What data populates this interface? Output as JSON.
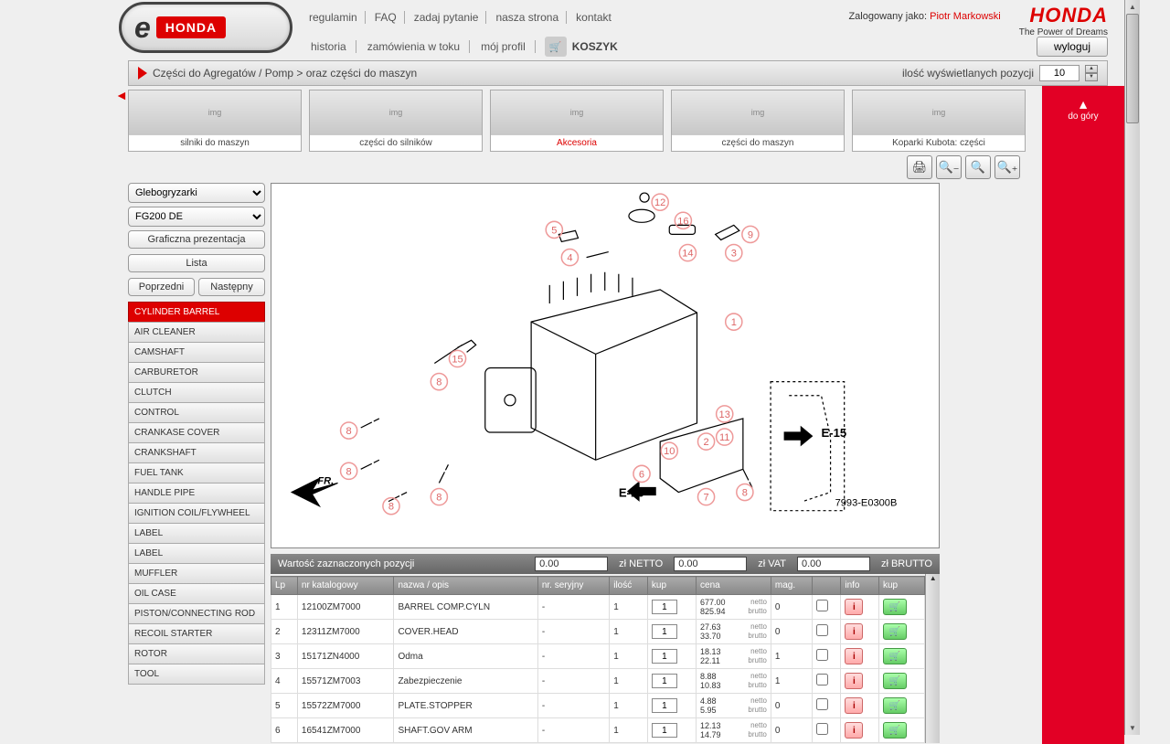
{
  "header": {
    "topLinks": [
      "regulamin",
      "FAQ",
      "zadaj pytanie",
      "nasza strona",
      "kontakt"
    ],
    "loginLabel": "Zalogowany jako:",
    "userName": "Piotr Markowski",
    "hondaTagline": "The Power of Dreams",
    "navLinks": [
      "historia",
      "zamówienia w toku",
      "mój profil"
    ],
    "cartLabel": "KOSZYK",
    "logoutLabel": "wyloguj"
  },
  "breadcrumb": {
    "path": "Części do Agregatów / Pomp >  oraz części do maszyn",
    "countLabel": "ilość wyświetlanych pozycji",
    "countValue": "10"
  },
  "categories": [
    {
      "label": "silniki do maszyn",
      "red": false
    },
    {
      "label": "części do silników",
      "red": false
    },
    {
      "label": "Akcesoria",
      "red": true
    },
    {
      "label": "części do maszyn",
      "red": false
    },
    {
      "label": "Koparki Kubota: części",
      "red": false
    }
  ],
  "sidebar": {
    "select1": "Glebogryzarki",
    "select2": "FG200 DE",
    "btnGraphic": "Graficzna prezentacja",
    "btnList": "Lista",
    "btnPrev": "Poprzedni",
    "btnNext": "Następny",
    "parts": [
      {
        "name": "CYLINDER BARREL",
        "active": true
      },
      {
        "name": "AIR CLEANER",
        "active": false
      },
      {
        "name": "CAMSHAFT",
        "active": false
      },
      {
        "name": "CARBURETOR",
        "active": false
      },
      {
        "name": "CLUTCH",
        "active": false
      },
      {
        "name": "CONTROL",
        "active": false
      },
      {
        "name": "CRANKASE COVER",
        "active": false
      },
      {
        "name": "CRANKSHAFT",
        "active": false
      },
      {
        "name": "FUEL TANK",
        "active": false
      },
      {
        "name": "HANDLE PIPE",
        "active": false
      },
      {
        "name": "IGNITION COIL/FLYWHEEL",
        "active": false
      },
      {
        "name": "LABEL",
        "active": false
      },
      {
        "name": "LABEL",
        "active": false
      },
      {
        "name": "MUFFLER",
        "active": false
      },
      {
        "name": "OIL CASE",
        "active": false
      },
      {
        "name": "PISTON/CONNECTING ROD",
        "active": false
      },
      {
        "name": "RECOIL STARTER",
        "active": false
      },
      {
        "name": "ROTOR",
        "active": false
      },
      {
        "name": "TOOL",
        "active": false
      }
    ]
  },
  "diagram": {
    "partNo": "7993-E0300B",
    "callouts": [
      "1",
      "2",
      "3",
      "4",
      "5",
      "6",
      "7",
      "8",
      "9",
      "10",
      "11",
      "12",
      "13",
      "14",
      "15",
      "16"
    ],
    "labels": [
      "E-15",
      "E-16",
      "FR."
    ]
  },
  "totals": {
    "label": "Wartość  zaznaczonych pozycji",
    "netto": "0.00",
    "nettoLabel": "zł NETTO",
    "vat": "0.00",
    "vatLabel": "zł VAT",
    "brutto": "0.00",
    "bruttoLabel": "zł BRUTTO"
  },
  "table": {
    "headers": [
      "Lp",
      "nr katalogowy",
      "nazwa / opis",
      "nr. seryjny",
      "ilość",
      "kup",
      "cena",
      "mag.",
      "info",
      "kup"
    ],
    "rows": [
      {
        "lp": "1",
        "nr": "12100ZM7000",
        "name": "BARREL COMP.CYLN",
        "serial": "-",
        "qty": "1",
        "buyQty": "1",
        "netto": "677.00",
        "brutto": "825.94",
        "mag": "0"
      },
      {
        "lp": "2",
        "nr": "12311ZM7000",
        "name": "COVER.HEAD",
        "serial": "-",
        "qty": "1",
        "buyQty": "1",
        "netto": "27.63",
        "brutto": "33.70",
        "mag": "0"
      },
      {
        "lp": "3",
        "nr": "15171ZN4000",
        "name": "Odma",
        "serial": "-",
        "qty": "1",
        "buyQty": "1",
        "netto": "18.13",
        "brutto": "22.11",
        "mag": "1"
      },
      {
        "lp": "4",
        "nr": "15571ZM7003",
        "name": "Zabezpieczenie",
        "serial": "-",
        "qty": "1",
        "buyQty": "1",
        "netto": "8.88",
        "brutto": "10.83",
        "mag": "1"
      },
      {
        "lp": "5",
        "nr": "15572ZM7000",
        "name": "PLATE.STOPPER",
        "serial": "-",
        "qty": "1",
        "buyQty": "1",
        "netto": "4.88",
        "brutto": "5.95",
        "mag": "0"
      },
      {
        "lp": "6",
        "nr": "16541ZM7000",
        "name": "SHAFT.GOV ARM",
        "serial": "-",
        "qty": "1",
        "buyQty": "1",
        "netto": "12.13",
        "brutto": "14.79",
        "mag": "0"
      }
    ],
    "priceSuffixNetto": "netto",
    "priceSuffixBrutto": "brutto"
  },
  "rightPanel": {
    "topLabel": "do góry"
  }
}
